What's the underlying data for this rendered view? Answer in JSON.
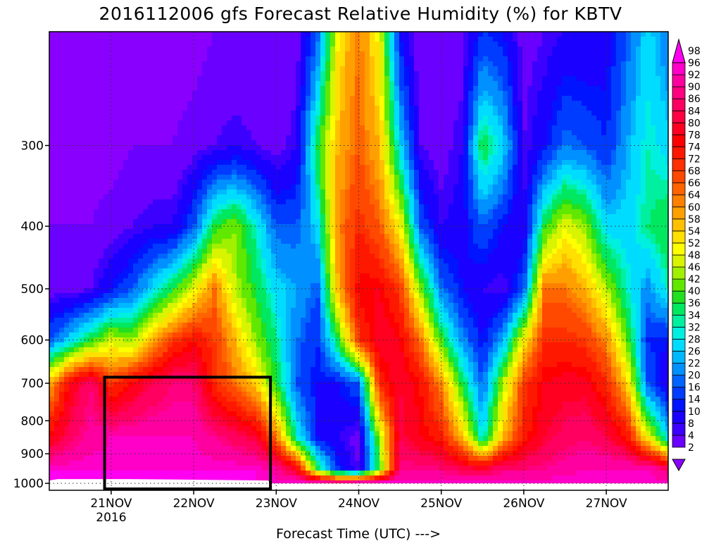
{
  "chart_data": {
    "type": "heatmap",
    "title": "2016112006 gfs Forecast Relative Humidity (%) for KBTV",
    "xlabel": "Forecast Time (UTC) --->",
    "ylabel": "",
    "x_ticks": [
      "21NOV",
      "22NOV",
      "23NOV",
      "24NOV",
      "25NOV",
      "26NOV",
      "27NOV"
    ],
    "x_tick_year": "2016",
    "x_range_days": [
      20.25,
      27.75
    ],
    "y_ticks": [
      300,
      400,
      500,
      600,
      700,
      800,
      900,
      1000
    ],
    "y_range_hPa": [
      200,
      1025
    ],
    "y_scale": "log",
    "colorbar": {
      "levels": [
        2,
        4,
        8,
        10,
        14,
        16,
        20,
        22,
        26,
        28,
        32,
        34,
        36,
        40,
        42,
        46,
        48,
        52,
        54,
        58,
        60,
        64,
        66,
        68,
        72,
        74,
        78,
        80,
        84,
        86,
        90,
        92,
        96,
        98
      ],
      "colors": [
        "#8a00ff",
        "#6a00ff",
        "#3c00ff",
        "#1a00ff",
        "#0014ff",
        "#003cff",
        "#0064ff",
        "#0090ff",
        "#00b8ff",
        "#00dcff",
        "#00f0e0",
        "#00f0a0",
        "#00e860",
        "#20e020",
        "#60e800",
        "#a0f000",
        "#d8f400",
        "#ffff00",
        "#ffe000",
        "#ffc000",
        "#ffa000",
        "#ff8000",
        "#ff6400",
        "#ff4800",
        "#ff3000",
        "#ff1800",
        "#ff0000",
        "#ff0020",
        "#ff0040",
        "#ff0060",
        "#ff0080",
        "#ff00a0",
        "#ff00c8",
        "#ff00f0"
      ],
      "extend": "both"
    },
    "highlight_box": {
      "x_days": [
        20.92,
        22.93
      ],
      "y_hPa": [
        685,
        1020
      ]
    },
    "grid": "dotted",
    "series": [
      {
        "x": 20.25,
        "values": [
          2,
          2,
          4,
          6,
          20,
          60,
          80,
          98,
          98
        ]
      },
      {
        "x": 20.5,
        "values": [
          2,
          2,
          4,
          6,
          30,
          80,
          88,
          98,
          98
        ]
      },
      {
        "x": 20.75,
        "values": [
          2,
          2,
          4,
          8,
          40,
          90,
          94,
          98,
          98
        ]
      },
      {
        "x": 21.0,
        "values": [
          2,
          2,
          6,
          14,
          50,
          72,
          96,
          98,
          98
        ]
      },
      {
        "x": 21.25,
        "values": [
          2,
          4,
          8,
          20,
          46,
          80,
          96,
          98,
          98
        ]
      },
      {
        "x": 21.5,
        "values": [
          2,
          4,
          10,
          30,
          60,
          86,
          96,
          98,
          98
        ]
      },
      {
        "x": 21.75,
        "values": [
          2,
          4,
          10,
          40,
          72,
          90,
          96,
          98,
          98
        ]
      },
      {
        "x": 22.0,
        "values": [
          2,
          6,
          20,
          52,
          78,
          90,
          96,
          98,
          98
        ]
      },
      {
        "x": 22.25,
        "values": [
          4,
          8,
          40,
          66,
          72,
          74,
          92,
          98,
          98
        ]
      },
      {
        "x": 22.5,
        "values": [
          4,
          10,
          46,
          48,
          60,
          66,
          88,
          98,
          98
        ]
      },
      {
        "x": 22.75,
        "values": [
          4,
          8,
          34,
          40,
          46,
          58,
          84,
          98,
          98
        ]
      },
      {
        "x": 23.0,
        "values": [
          4,
          6,
          20,
          30,
          36,
          40,
          66,
          94,
          98
        ]
      },
      {
        "x": 23.25,
        "values": [
          6,
          10,
          20,
          26,
          22,
          20,
          34,
          80,
          98
        ]
      },
      {
        "x": 23.5,
        "values": [
          20,
          40,
          30,
          20,
          16,
          14,
          14,
          40,
          96
        ]
      },
      {
        "x": 23.75,
        "values": [
          54,
          60,
          64,
          60,
          40,
          14,
          10,
          16,
          92
        ]
      },
      {
        "x": 24.0,
        "values": [
          66,
          68,
          74,
          80,
          72,
          20,
          6,
          8,
          96
        ]
      },
      {
        "x": 24.25,
        "values": [
          52,
          60,
          68,
          80,
          84,
          74,
          46,
          40,
          98
        ]
      },
      {
        "x": 24.5,
        "values": [
          14,
          30,
          54,
          72,
          80,
          84,
          86,
          92,
          98
        ]
      },
      {
        "x": 24.75,
        "values": [
          4,
          8,
          20,
          46,
          66,
          78,
          80,
          92,
          98
        ]
      },
      {
        "x": 25.0,
        "values": [
          4,
          6,
          10,
          22,
          42,
          64,
          76,
          90,
          98
        ]
      },
      {
        "x": 25.25,
        "values": [
          6,
          10,
          12,
          14,
          24,
          40,
          60,
          86,
          98
        ]
      },
      {
        "x": 25.5,
        "values": [
          16,
          40,
          20,
          10,
          14,
          20,
          32,
          84,
          98
        ]
      },
      {
        "x": 25.75,
        "values": [
          14,
          30,
          14,
          8,
          26,
          48,
          60,
          90,
          98
        ]
      },
      {
        "x": 26.0,
        "values": [
          6,
          8,
          10,
          20,
          54,
          72,
          76,
          90,
          98
        ]
      },
      {
        "x": 26.25,
        "values": [
          8,
          14,
          40,
          66,
          74,
          80,
          84,
          92,
          98
        ]
      },
      {
        "x": 26.5,
        "values": [
          10,
          22,
          52,
          66,
          74,
          82,
          88,
          94,
          98
        ]
      },
      {
        "x": 26.75,
        "values": [
          10,
          20,
          46,
          60,
          72,
          82,
          90,
          96,
          98
        ]
      },
      {
        "x": 27.0,
        "values": [
          12,
          16,
          30,
          48,
          64,
          74,
          86,
          96,
          98
        ]
      },
      {
        "x": 27.25,
        "values": [
          20,
          26,
          30,
          34,
          44,
          58,
          78,
          96,
          98
        ]
      },
      {
        "x": 27.5,
        "values": [
          30,
          34,
          36,
          24,
          16,
          20,
          54,
          96,
          98
        ]
      },
      {
        "x": 27.75,
        "values": [
          22,
          30,
          40,
          34,
          14,
          10,
          30,
          88,
          98
        ]
      }
    ],
    "y_levels_hPa": [
      200,
      300,
      400,
      500,
      600,
      700,
      850,
      950,
      1000
    ]
  }
}
